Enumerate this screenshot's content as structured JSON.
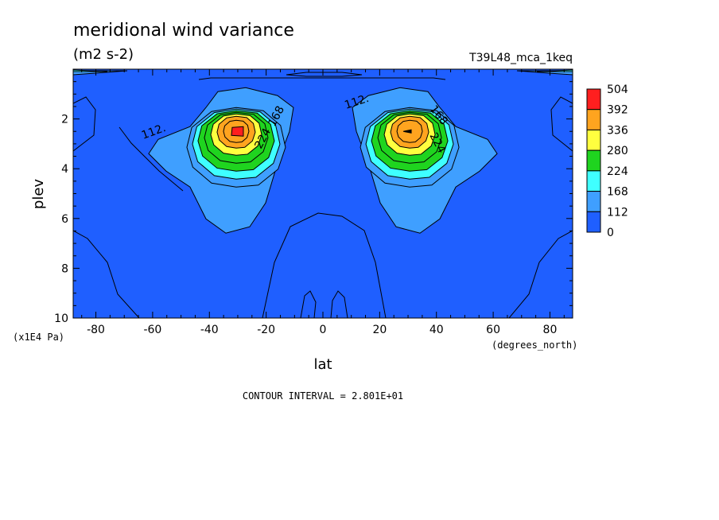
{
  "title": "meridional wind variance",
  "units": "(m2 s-2)",
  "dataset": "T39L48_mca_1keq",
  "footer": "CONTOUR INTERVAL = 2.801E+01",
  "chart_data": {
    "type": "contour",
    "xlabel": "lat",
    "xunits": "(degrees_north)",
    "ylabel": "plev",
    "yunits": "(x1E4 Pa)",
    "xlim": [
      -88,
      88
    ],
    "ylim": [
      10,
      0
    ],
    "x_ticks": [
      -80,
      -60,
      -40,
      -20,
      0,
      20,
      40,
      60,
      80
    ],
    "x_tick_labels": [
      "-80",
      "-60",
      "-40",
      "-20",
      "0",
      "20",
      "40",
      "60",
      "80"
    ],
    "y_ticks": [
      2,
      4,
      6,
      8,
      10
    ],
    "y_tick_labels": [
      "2",
      "4",
      "6",
      "8",
      "10"
    ],
    "contour_interval": 28.01,
    "levels": [
      0,
      112,
      168,
      224,
      280,
      336,
      392,
      504
    ],
    "legend_labels": [
      "504",
      "392",
      "336",
      "280",
      "224",
      "168",
      "112",
      "0"
    ],
    "fill_colors": [
      "#1f5fff",
      "#3f9fff",
      "#3fffff",
      "#1fd41f",
      "#ffff3f",
      "#ffa41f",
      "#ff1f1f"
    ],
    "inline_labels": [
      "112.",
      "168",
      "224",
      "112.",
      "168",
      "224"
    ],
    "maxima": [
      {
        "lat": -30,
        "plev": 2.5,
        "value": 504
      },
      {
        "lat": 30,
        "plev": 2.5,
        "value": 420
      }
    ],
    "legend_position": "right"
  }
}
